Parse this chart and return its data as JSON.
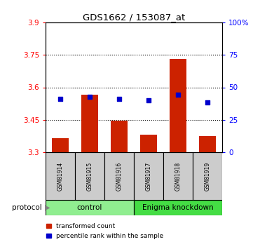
{
  "title": "GDS1662 / 153087_at",
  "samples": [
    "GSM81914",
    "GSM81915",
    "GSM81916",
    "GSM81917",
    "GSM81918",
    "GSM81919"
  ],
  "red_values": [
    3.365,
    3.565,
    3.445,
    3.38,
    3.73,
    3.375
  ],
  "blue_values": [
    3.545,
    3.555,
    3.545,
    3.54,
    3.565,
    3.53
  ],
  "ymin": 3.3,
  "ymax": 3.9,
  "y_ticks_left": [
    3.3,
    3.45,
    3.6,
    3.75,
    3.9
  ],
  "y_ticks_right": [
    0,
    25,
    50,
    75,
    100
  ],
  "groups": [
    {
      "label": "control",
      "start": 0,
      "end": 3,
      "color": "#90ee90"
    },
    {
      "label": "Enigma knockdown",
      "start": 3,
      "end": 6,
      "color": "#44dd44"
    }
  ],
  "protocol_label": "protocol",
  "legend_items": [
    {
      "label": "transformed count",
      "color": "#cc2200"
    },
    {
      "label": "percentile rank within the sample",
      "color": "#0000cc"
    }
  ],
  "bar_color": "#cc2200",
  "dot_color": "#0000cc",
  "bar_bottom": 3.3,
  "grid_dotted_at": [
    3.45,
    3.6,
    3.75
  ],
  "sample_box_color": "#cccccc",
  "bar_width": 0.55
}
